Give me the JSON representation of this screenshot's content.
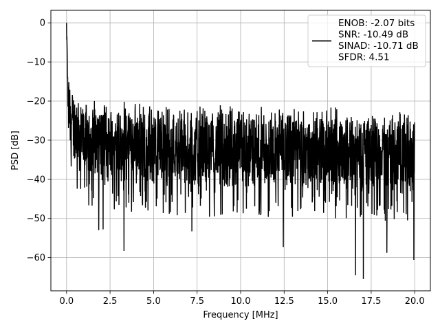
{
  "chart_data": {
    "type": "line",
    "title": "",
    "xlabel": "Frequency [MHz]",
    "ylabel": "PSD [dB]",
    "xlim": [
      -0.9,
      20.9
    ],
    "ylim": [
      -68.5,
      3.2
    ],
    "xticks": [
      0.0,
      2.5,
      5.0,
      7.5,
      10.0,
      12.5,
      15.0,
      17.5,
      20.0
    ],
    "xtick_labels": [
      "0.0",
      "2.5",
      "5.0",
      "7.5",
      "10.0",
      "12.5",
      "15.0",
      "17.5",
      "20.0"
    ],
    "yticks": [
      0,
      -10,
      -20,
      -30,
      -40,
      -50,
      -60
    ],
    "ytick_labels": [
      "0",
      "−10",
      "−20",
      "−30",
      "−40",
      "−50",
      "−60"
    ],
    "grid": true,
    "legend_position": "top-right",
    "line_color": "#000000",
    "series": [
      {
        "name": "ENOB: -2.07 bits\nSNR: -10.49 dB\nSINAD: -10.71 dB\nSFDR: 4.51",
        "x_range": [
          0.0,
          20.0
        ],
        "envelope": {
          "x": [
            0.0,
            0.05,
            0.1,
            0.2,
            0.3,
            0.5,
            0.8,
            1.2,
            2.0,
            3.0,
            5.0,
            7.5,
            10.0,
            12.5,
            15.0,
            17.5,
            20.0
          ],
          "upper": [
            0.0,
            -6.0,
            -10.5,
            -13.0,
            -15.0,
            -16.5,
            -17.5,
            -18.0,
            -18.5,
            -19.0,
            -19.5,
            -20.0,
            -20.5,
            -21.0,
            -21.0,
            -21.5,
            -21.5
          ],
          "lower": [
            -27.0,
            -28.0,
            -29.0,
            -33.0,
            -36.0,
            -38.0,
            -40.0,
            -41.0,
            -42.0,
            -42.5,
            -43.0,
            -43.5,
            -44.0,
            -44.0,
            -44.5,
            -44.5,
            -45.0
          ]
        },
        "notable_dips": [
          {
            "x": 1.85,
            "y": -53.0
          },
          {
            "x": 2.1,
            "y": -52.8
          },
          {
            "x": 3.3,
            "y": -58.3
          },
          {
            "x": 7.2,
            "y": -53.3
          },
          {
            "x": 12.45,
            "y": -57.3
          },
          {
            "x": 16.6,
            "y": -64.5
          },
          {
            "x": 17.05,
            "y": -65.5
          },
          {
            "x": 18.4,
            "y": -58.8
          },
          {
            "x": 19.95,
            "y": -60.6
          }
        ]
      }
    ]
  }
}
